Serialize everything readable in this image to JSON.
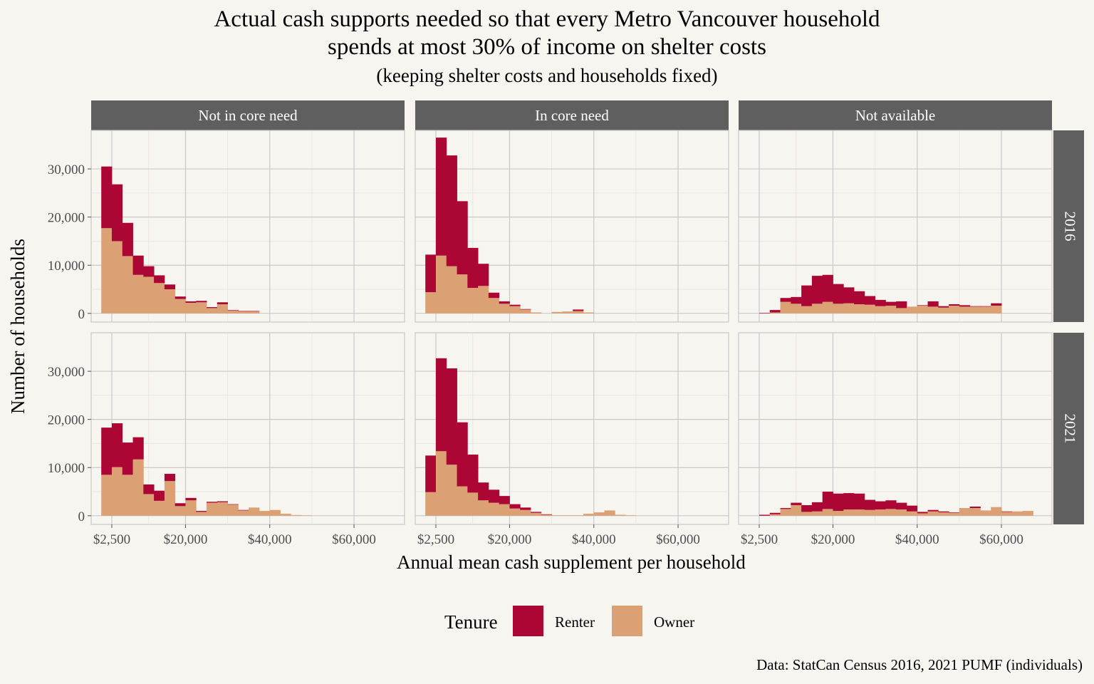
{
  "chart_data": {
    "type": "bar",
    "stacked": true,
    "title_line1": "Actual cash supports needed so that every Metro Vancouver household",
    "title_line2": "spends at most 30% of income on shelter costs",
    "subtitle": "(keeping shelter costs and households fixed)",
    "xlabel": "Annual mean cash supplement per household",
    "ylabel": "Number of households",
    "caption": "Data: StatCan Census 2016, 2021 PUMF (individuals)",
    "x_ticks": [
      {
        "value": 2500,
        "label": "$2,500"
      },
      {
        "value": 20000,
        "label": "$20,000"
      },
      {
        "value": 40000,
        "label": "$40,000"
      },
      {
        "value": 60000,
        "label": "$60,000"
      }
    ],
    "y_ticks": [
      {
        "value": 0,
        "label": "0"
      },
      {
        "value": 10000,
        "label": "10,000"
      },
      {
        "value": 20000,
        "label": "20,000"
      },
      {
        "value": 30000,
        "label": "30,000"
      }
    ],
    "xlim": [
      -2400,
      72000
    ],
    "ylim": [
      -1800,
      38000
    ],
    "bin_start": 0,
    "bin_width": 2500,
    "columns": [
      "Not in core need",
      "In core need",
      "Not available"
    ],
    "rows": [
      "2016",
      "2021"
    ],
    "legend": {
      "title": "Tenure",
      "position": "bottom",
      "entries": [
        {
          "name": "Renter",
          "color": "#ab0634"
        },
        {
          "name": "Owner",
          "color": "#dba073"
        }
      ]
    },
    "colors": {
      "Renter": "#ab0634",
      "Owner": "#dba073"
    },
    "panels": [
      {
        "row": "2016",
        "col": "Not in core need",
        "owner": [
          17700,
          15000,
          11900,
          8000,
          7600,
          6300,
          5000,
          3000,
          2200,
          2300,
          1100,
          1900,
          600,
          400,
          400
        ],
        "renter": [
          12800,
          11800,
          6900,
          4000,
          2200,
          1600,
          1000,
          500,
          300,
          300,
          200,
          400,
          100,
          100,
          100
        ]
      },
      {
        "row": "2016",
        "col": "In core need",
        "owner": [
          4400,
          12000,
          9800,
          8100,
          5300,
          5700,
          3200,
          2000,
          1500,
          800,
          200,
          0,
          300,
          400,
          500,
          200
        ],
        "renter": [
          7800,
          24500,
          23000,
          15200,
          8300,
          4600,
          1100,
          500,
          300,
          100,
          0,
          0,
          0,
          0,
          300,
          0
        ]
      },
      {
        "row": "2016",
        "col": "Not available",
        "owner": [
          0,
          0,
          200,
          2400,
          2000,
          1500,
          2000,
          2400,
          2000,
          2100,
          1900,
          1800,
          1500,
          1600,
          1100,
          1400,
          1600,
          1400,
          1200,
          1600,
          1400,
          1400,
          1400,
          1600
        ],
        "renter": [
          0,
          100,
          500,
          800,
          1400,
          4300,
          5800,
          5600,
          4100,
          3300,
          2700,
          1800,
          1300,
          800,
          1400,
          0,
          100,
          1100,
          300,
          300,
          300,
          100,
          100,
          500
        ]
      },
      {
        "row": "2021",
        "col": "Not in core need",
        "owner": [
          8500,
          10100,
          8500,
          11700,
          4500,
          3100,
          7200,
          2000,
          3200,
          800,
          2700,
          2800,
          2300,
          1100,
          1700,
          1000,
          1200,
          400,
          150,
          80
        ],
        "renter": [
          9800,
          9100,
          6700,
          4600,
          2000,
          2100,
          1500,
          600,
          500,
          200,
          200,
          200,
          100,
          100,
          0,
          0,
          0,
          0,
          0,
          0
        ]
      },
      {
        "row": "2021",
        "col": "In core need",
        "owner": [
          4900,
          13400,
          10600,
          6100,
          4800,
          3200,
          2700,
          2400,
          1500,
          1200,
          600,
          200,
          100,
          100,
          100,
          400,
          700,
          1100,
          200,
          100
        ],
        "renter": [
          7600,
          19300,
          20000,
          13300,
          7900,
          3700,
          2700,
          1700,
          900,
          500,
          200,
          100,
          0,
          0,
          0,
          0,
          0,
          0,
          0,
          0
        ]
      },
      {
        "row": "2021",
        "col": "Not available",
        "owner": [
          0,
          0,
          300,
          1400,
          2200,
          800,
          900,
          1400,
          1000,
          1300,
          1300,
          1200,
          1300,
          1400,
          1300,
          900,
          500,
          900,
          700,
          600,
          1600,
          1600,
          1100,
          1800,
          800,
          900,
          1000
        ],
        "renter": [
          0,
          200,
          300,
          200,
          500,
          1400,
          1900,
          3600,
          3600,
          3400,
          3300,
          2100,
          1700,
          1800,
          1400,
          1200,
          300,
          300,
          200,
          100,
          0,
          300,
          0,
          0,
          100,
          0,
          0
        ]
      }
    ]
  }
}
